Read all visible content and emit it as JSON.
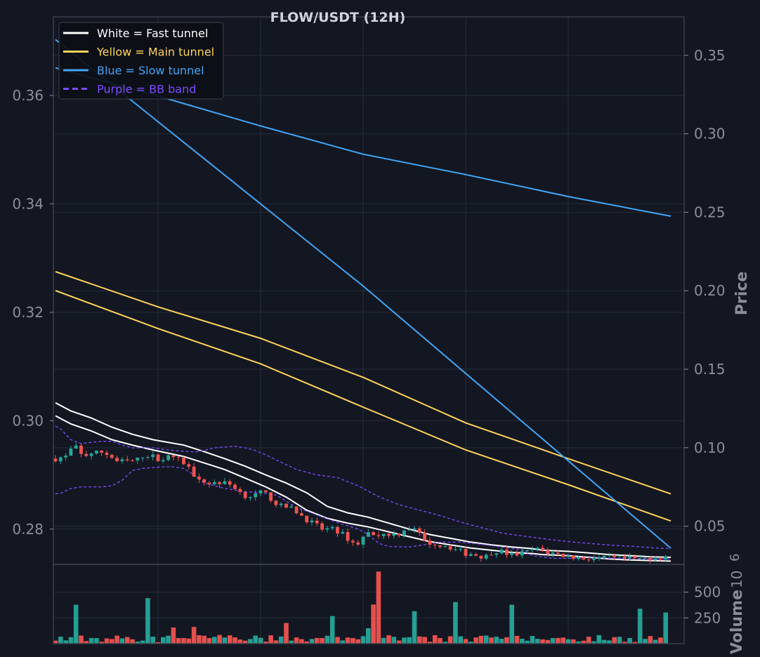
{
  "colors": {
    "background": "#131722",
    "grid": "#252b3a",
    "frame": "#3a3f4c",
    "tick_text": "#8b8f9a",
    "title_text": "#d1d4dc",
    "white": "#ffffff",
    "yellow": "#ffd35a",
    "blue": "#42a5f5",
    "purple": "#7c4dff",
    "up": "#26a69a",
    "down": "#ef5350"
  },
  "chart_data": {
    "type": "candlestick",
    "title": "FLOW/USDT (12H)",
    "legend": {
      "placement": "top-left",
      "entries": [
        {
          "label": "White = Fast tunnel",
          "color_key": "white",
          "dashed": false
        },
        {
          "label": "Yellow = Main tunnel",
          "color_key": "yellow",
          "dashed": false
        },
        {
          "label": "Blue = Slow tunnel",
          "color_key": "blue",
          "dashed": false
        },
        {
          "label": "Purple = BB band",
          "color_key": "purple",
          "dashed": true
        }
      ]
    },
    "left_axis": {
      "range": [
        0.2735,
        0.3745
      ],
      "ticks": [
        "0.28",
        "0.30",
        "0.32",
        "0.34",
        "0.36"
      ],
      "tick_values": [
        0.28,
        0.3,
        0.32,
        0.34,
        0.36
      ]
    },
    "right_axis": {
      "label": "Price",
      "range": [
        0.0257,
        0.3745
      ],
      "ticks": [
        "0.05",
        "0.10",
        "0.15",
        "0.20",
        "0.25",
        "0.30",
        "0.35"
      ],
      "tick_values": [
        0.05,
        0.1,
        0.15,
        0.2,
        0.25,
        0.3,
        0.35
      ]
    },
    "volume_axis": {
      "label": "Volume",
      "exponent": "6",
      "range": [
        0,
        770
      ],
      "ticks": [
        "250",
        "500"
      ],
      "tick_values": [
        250,
        500
      ]
    },
    "grid": true,
    "x_count": 120,
    "x_gridlines": [
      20,
      40,
      60,
      80,
      100
    ],
    "price_path": [
      [
        0,
        0.293
      ],
      [
        4,
        0.2935
      ],
      [
        5,
        0.2958
      ],
      [
        6,
        0.295
      ],
      [
        8,
        0.2933
      ],
      [
        10,
        0.294
      ],
      [
        14,
        0.2942
      ],
      [
        16,
        0.2935
      ],
      [
        18,
        0.2925
      ],
      [
        22,
        0.2925
      ],
      [
        24,
        0.2928
      ],
      [
        26,
        0.2938
      ],
      [
        28,
        0.2935
      ],
      [
        30,
        0.293
      ],
      [
        32,
        0.293
      ],
      [
        34,
        0.2935
      ],
      [
        36,
        0.2928
      ],
      [
        38,
        0.292
      ],
      [
        40,
        0.2905
      ],
      [
        42,
        0.2888
      ],
      [
        44,
        0.2886
      ],
      [
        46,
        0.2885
      ],
      [
        48,
        0.2886
      ],
      [
        50,
        0.2884
      ],
      [
        52,
        0.288
      ],
      [
        54,
        0.2868
      ],
      [
        56,
        0.286
      ],
      [
        58,
        0.2862
      ],
      [
        60,
        0.2867
      ],
      [
        62,
        0.2863
      ],
      [
        64,
        0.285
      ],
      [
        66,
        0.2842
      ],
      [
        68,
        0.284
      ],
      [
        70,
        0.2835
      ],
      [
        72,
        0.2825
      ],
      [
        74,
        0.2815
      ],
      [
        76,
        0.2808
      ],
      [
        78,
        0.28
      ],
      [
        80,
        0.28
      ],
      [
        82,
        0.2798
      ],
      [
        84,
        0.279
      ],
      [
        86,
        0.278
      ],
      [
        88,
        0.277
      ],
      [
        90,
        0.2785
      ],
      [
        92,
        0.2795
      ],
      [
        94,
        0.279
      ],
      [
        96,
        0.279
      ],
      [
        98,
        0.2792
      ],
      [
        100,
        0.279
      ],
      [
        102,
        0.28
      ],
      [
        104,
        0.2802
      ],
      [
        106,
        0.2795
      ],
      [
        108,
        0.2775
      ],
      [
        110,
        0.2775
      ],
      [
        112,
        0.277
      ],
      [
        114,
        0.277
      ],
      [
        116,
        0.2765
      ],
      [
        118,
        0.276
      ],
      [
        120,
        0.2755
      ],
      [
        122,
        0.2755
      ],
      [
        124,
        0.275
      ],
      [
        126,
        0.275
      ],
      [
        128,
        0.276
      ],
      [
        130,
        0.276
      ],
      [
        132,
        0.2755
      ],
      [
        134,
        0.2752
      ],
      [
        136,
        0.2755
      ],
      [
        138,
        0.2758
      ],
      [
        140,
        0.2763
      ],
      [
        142,
        0.2762
      ],
      [
        144,
        0.2757
      ],
      [
        146,
        0.2755
      ],
      [
        148,
        0.2752
      ],
      [
        150,
        0.275
      ],
      [
        152,
        0.2748
      ],
      [
        154,
        0.2746
      ],
      [
        156,
        0.2746
      ],
      [
        158,
        0.2745
      ],
      [
        160,
        0.2745
      ],
      [
        162,
        0.2748
      ],
      [
        164,
        0.2745
      ],
      [
        166,
        0.2745
      ],
      [
        168,
        0.2745
      ],
      [
        170,
        0.2745
      ],
      [
        172,
        0.2745
      ],
      [
        174,
        0.2747
      ],
      [
        176,
        0.2748
      ],
      [
        178,
        0.2748
      ],
      [
        180,
        0.2752
      ]
    ],
    "series": [
      {
        "name": "White = Fast tunnel",
        "color_key": "white",
        "axis": "left",
        "values": [
          [
            0,
            0.3033
          ],
          [
            1,
            0.3028
          ],
          [
            3,
            0.3018
          ],
          [
            7,
            0.3005
          ],
          [
            11,
            0.2988
          ],
          [
            15,
            0.2975
          ],
          [
            19,
            0.2965
          ],
          [
            25,
            0.2955
          ],
          [
            29,
            0.2943
          ],
          [
            33,
            0.293
          ],
          [
            37,
            0.2916
          ],
          [
            41,
            0.29
          ],
          [
            45,
            0.2885
          ],
          [
            49,
            0.2867
          ],
          [
            53,
            0.2842
          ],
          [
            57,
            0.283
          ],
          [
            61,
            0.2822
          ],
          [
            65,
            0.2811
          ],
          [
            69,
            0.28
          ],
          [
            73,
            0.279
          ],
          [
            77,
            0.2783
          ],
          [
            81,
            0.2776
          ],
          [
            85,
            0.2771
          ],
          [
            89,
            0.2767
          ],
          [
            93,
            0.2764
          ],
          [
            95,
            0.2761
          ],
          [
            100,
            0.2759
          ],
          [
            104,
            0.2756
          ],
          [
            108,
            0.2753
          ],
          [
            112,
            0.2751
          ],
          [
            116,
            0.2749
          ],
          [
            120,
            0.2748
          ]
        ]
      },
      {
        "name": "White = Fast tunnel",
        "color_key": "white",
        "axis": "left",
        "values": [
          [
            0,
            0.3009
          ],
          [
            1,
            0.3004
          ],
          [
            3,
            0.2994
          ],
          [
            7,
            0.2981
          ],
          [
            11,
            0.2965
          ],
          [
            15,
            0.2955
          ],
          [
            19,
            0.2946
          ],
          [
            25,
            0.2934
          ],
          [
            29,
            0.2922
          ],
          [
            33,
            0.291
          ],
          [
            37,
            0.2894
          ],
          [
            41,
            0.2878
          ],
          [
            45,
            0.2859
          ],
          [
            49,
            0.2835
          ],
          [
            53,
            0.282
          ],
          [
            57,
            0.2811
          ],
          [
            61,
            0.2804
          ],
          [
            65,
            0.2795
          ],
          [
            69,
            0.2786
          ],
          [
            73,
            0.2777
          ],
          [
            77,
            0.2771
          ],
          [
            81,
            0.2765
          ],
          [
            85,
            0.2761
          ],
          [
            89,
            0.2757
          ],
          [
            93,
            0.2755
          ],
          [
            95,
            0.2753
          ],
          [
            100,
            0.2751
          ],
          [
            104,
            0.2748
          ],
          [
            108,
            0.2745
          ],
          [
            112,
            0.2743
          ],
          [
            116,
            0.2742
          ],
          [
            120,
            0.2741
          ]
        ]
      },
      {
        "name": "Yellow = Main tunnel",
        "color_key": "yellow",
        "axis": "left",
        "values": [
          [
            0,
            0.3275
          ],
          [
            20,
            0.321
          ],
          [
            40,
            0.3152
          ],
          [
            60,
            0.308
          ],
          [
            80,
            0.2996
          ],
          [
            100,
            0.293
          ],
          [
            120,
            0.2865
          ]
        ]
      },
      {
        "name": "Yellow = Main tunnel",
        "color_key": "yellow",
        "axis": "left",
        "values": [
          [
            0,
            0.324
          ],
          [
            20,
            0.317
          ],
          [
            40,
            0.3105
          ],
          [
            60,
            0.3025
          ],
          [
            80,
            0.2946
          ],
          [
            100,
            0.2882
          ],
          [
            120,
            0.2815
          ]
        ]
      },
      {
        "name": "Blue = Slow tunnel",
        "color_key": "blue",
        "axis": "right",
        "values": [
          [
            0,
            0.36
          ],
          [
            60,
            0.203
          ],
          [
            120,
            0.036
          ]
        ]
      },
      {
        "name": "Blue = Slow tunnel",
        "color_key": "blue",
        "axis": "right",
        "values": [
          [
            0,
            0.342
          ],
          [
            20,
            0.324
          ],
          [
            40,
            0.305
          ],
          [
            60,
            0.287
          ],
          [
            80,
            0.274
          ],
          [
            100,
            0.26
          ],
          [
            120,
            0.2475
          ]
        ]
      },
      {
        "name": "Purple = BB band",
        "color_key": "purple",
        "axis": "left",
        "dashed": true,
        "values": [
          [
            0,
            0.299
          ],
          [
            1,
            0.2985
          ],
          [
            3,
            0.2965
          ],
          [
            5,
            0.2958
          ],
          [
            7,
            0.296
          ],
          [
            9,
            0.2962
          ],
          [
            11,
            0.2962
          ],
          [
            13,
            0.2955
          ],
          [
            15,
            0.295
          ],
          [
            19,
            0.295
          ],
          [
            23,
            0.2945
          ],
          [
            27,
            0.2942
          ],
          [
            29,
            0.2945
          ],
          [
            31,
            0.295
          ],
          [
            35,
            0.2953
          ],
          [
            37,
            0.295
          ],
          [
            39,
            0.2945
          ],
          [
            41,
            0.2937
          ],
          [
            43,
            0.2928
          ],
          [
            47,
            0.291
          ],
          [
            51,
            0.29
          ],
          [
            55,
            0.2895
          ],
          [
            59,
            0.288
          ],
          [
            63,
            0.286
          ],
          [
            67,
            0.2845
          ],
          [
            71,
            0.2835
          ],
          [
            75,
            0.2825
          ],
          [
            79,
            0.2813
          ],
          [
            83,
            0.2803
          ],
          [
            87,
            0.2793
          ],
          [
            89,
            0.279
          ],
          [
            93,
            0.2785
          ],
          [
            97,
            0.278
          ],
          [
            101,
            0.2776
          ],
          [
            105,
            0.2773
          ],
          [
            109,
            0.277
          ],
          [
            113,
            0.2768
          ],
          [
            117,
            0.2765
          ],
          [
            120,
            0.2764
          ]
        ]
      },
      {
        "name": "Purple = BB band",
        "color_key": "purple",
        "axis": "left",
        "dashed": true,
        "values": [
          [
            0,
            0.2865
          ],
          [
            1,
            0.2866
          ],
          [
            3,
            0.2875
          ],
          [
            5,
            0.2878
          ],
          [
            9,
            0.2878
          ],
          [
            11,
            0.288
          ],
          [
            13,
            0.289
          ],
          [
            15,
            0.2908
          ],
          [
            17,
            0.2912
          ],
          [
            21,
            0.2915
          ],
          [
            23,
            0.2915
          ],
          [
            25,
            0.2912
          ],
          [
            27,
            0.29
          ],
          [
            29,
            0.2885
          ],
          [
            33,
            0.2875
          ],
          [
            37,
            0.2869
          ],
          [
            39,
            0.2868
          ],
          [
            43,
            0.2863
          ],
          [
            47,
            0.284
          ],
          [
            51,
            0.2826
          ],
          [
            55,
            0.2812
          ],
          [
            59,
            0.28
          ],
          [
            61,
            0.279
          ],
          [
            63,
            0.2774
          ],
          [
            65,
            0.2768
          ],
          [
            69,
            0.2767
          ],
          [
            71,
            0.277
          ],
          [
            75,
            0.2776
          ],
          [
            79,
            0.2776
          ],
          [
            83,
            0.2772
          ],
          [
            87,
            0.2767
          ],
          [
            91,
            0.2762
          ],
          [
            93,
            0.2751
          ],
          [
            97,
            0.2746
          ],
          [
            101,
            0.2746
          ],
          [
            105,
            0.2747
          ],
          [
            109,
            0.2746
          ],
          [
            113,
            0.2745
          ],
          [
            117,
            0.2745
          ],
          [
            120,
            0.2745
          ]
        ]
      }
    ]
  }
}
